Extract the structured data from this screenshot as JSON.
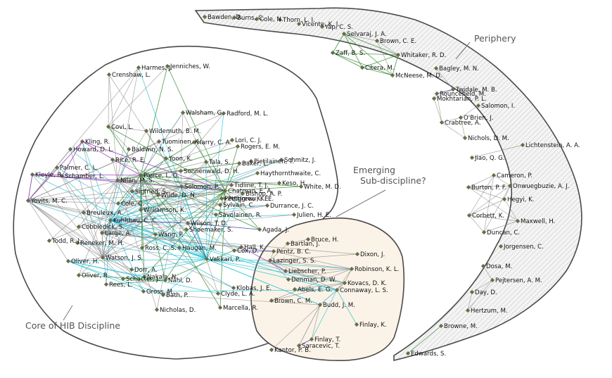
{
  "regions": {
    "core": "Core of HIB Discipline",
    "emerging_line1": "Emerging",
    "emerging_line2": "Sub-discipline?",
    "periphery": "Periphery"
  },
  "colors": {
    "edge_gray": "#8a8a8a",
    "edge_green": "#2e8b2e",
    "edge_cyan": "#2ec4d6",
    "edge_blue": "#2233aa",
    "edge_purple": "#8a2bb0",
    "emerging_fill": "#fbf3e8",
    "node": "#6b6b4a"
  },
  "authors": [
    "Bawden, D.",
    "Burns, C.",
    "Cole, N.",
    "Thorn, L. I.",
    "Vicente, K. J.",
    "Yap, C. S.",
    "Selvaraj, J. A.",
    "Brown, C. E.",
    "Zaff, B. S.",
    "Whitaker, R. D.",
    "Citera, M.",
    "McNeese, M. D.",
    "Bagley, M. N.",
    "Twidale, M. B.",
    "Rouncefield, M.",
    "Mokhtarian, P. L.",
    "Salomon, I.",
    "O'Brien, J.",
    "Crabtree, A.",
    "Nichols, D. M.",
    "Lichtenstein, A. A.",
    "Jiao, Q. G.",
    "Cameron, P.",
    "Burton, P. F.",
    "Onwuegbuzie, A. J.",
    "Hegyi, K.",
    "Corbett, K.",
    "Maxwell, H.",
    "Duncan, C.",
    "Jorgensen, C.",
    "Dosa, M.",
    "Pejtersen, A. M.",
    "Day, D.",
    "Hertzum, M.",
    "Browne, M.",
    "Edwards, S.",
    "Harmes, J.",
    "Jenniches, W.",
    "Crenshaw, L.",
    "Walsham, G.",
    "Radford, M. L.",
    "Covi, L.",
    "Wildemuth, B. M.",
    "Kling, R.",
    "Tuominen, K.",
    "Harry, C. A.",
    "Lori, C. J.",
    "Baldwin, N. S.",
    "Howard, D. L.",
    "Rogers, E. M.",
    "Rice, R. E.",
    "Yoon, K.",
    "Tala, S.",
    "Baker, L.",
    "Pietilainen, T.",
    "Schmitz, J.",
    "Palmer, C. L.",
    "Pierce, L. G.",
    "Sonnenwald, D. H.",
    "Schamber, L.",
    "Kleyle, R.",
    "Nilan, M. S.",
    "Tidline, T. J.",
    "Haythornthwaite, C.",
    "Solomon, P.",
    "Chatman, E. A.",
    "Sigfried, S.",
    "Wilde, D. N.",
    "Bishop, A. P.",
    "White, M. D.",
    "Keso, H.",
    "Pettigrew, K. E.",
    "Yovits, M. C.",
    "Cole, C.",
    "Sylvain, C.",
    "Durrance, J. C.",
    "Breuleux, A.",
    "Williamson, K.",
    "Savolainen, R.",
    "Julien, H. E.",
    "Kuhlthau, C. C.",
    "Wilson, T. D.",
    "Cobbledick, S.",
    "Large, A.",
    "Shoemaker, S.",
    "Agada, J.",
    "Todd, R. J.",
    "Wang, P.",
    "Reneker, M. H.",
    "Ross, C. S.",
    "Haugan, M.",
    "Watson, J. S.",
    "Oliver, H.",
    "Vakkari, P.",
    "Cox, D.",
    "Hall, K.",
    "Dorr, A.",
    "Nahl, D.",
    "Oliver, R.",
    "Rees, L.",
    "Schacter, J.",
    "Nakala, N.",
    "Clyde, L. A.",
    "Gross, M.",
    "Bath, P.",
    "Marcella, R.",
    "Nicholas, D.",
    "Klobas, J. E.",
    "Bruce, H.",
    "Bartlan, J.",
    "Pettigrew, K. E.",
    "Pentz, B. C.",
    "Dixon, J.",
    "Lazinger, S. S.",
    "Liebscher, P.",
    "Robinson, K. L.",
    "Denman, D. W.",
    "Kovacs, D. K.",
    "Abels, E. G.",
    "Connaway, L. S.",
    "Brown, C. M.",
    "Budd, J. M.",
    "Finlay, K.",
    "Finlay, T.",
    "Saracevic, T.",
    "Kantor, P. B."
  ]
}
